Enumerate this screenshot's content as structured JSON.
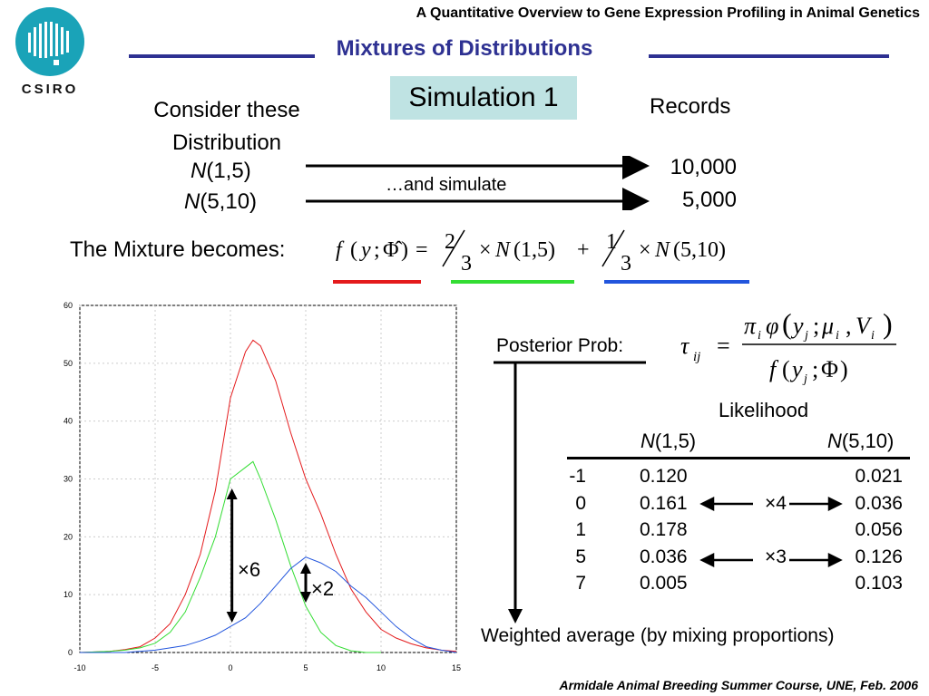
{
  "header": {
    "title": "A Quantitative Overview to Gene Expression Profiling in Animal Genetics"
  },
  "footer": {
    "text": "Armidale Animal Breeding Summer Course, UNE, Feb. 2006"
  },
  "logo": {
    "text": "CSIRO"
  },
  "slide": {
    "title": "Mixtures of Distributions",
    "simulation": "Simulation 1",
    "consider": [
      "Consider these",
      "Distribution"
    ],
    "dist1_n": "N",
    "dist1_params": "(1,5)",
    "dist2_n": "N",
    "dist2_params": "(5,10)",
    "records_label": "Records",
    "records1": "10,000",
    "records2": "5,000",
    "simulate_label": "…and simulate",
    "mixture_label": "The Mixture becomes:",
    "posterior_label": "Posterior Prob:",
    "weighted_label": "Weighted average (by mixing proportions)",
    "factor6": "×6",
    "factor2": "×2"
  },
  "formula": {
    "f": "f",
    "y": "y",
    "phi_hat": "Φ̂",
    "eq": "=",
    "w1_num": "2",
    "w1_den": "3",
    "times": "×",
    "n1": "N",
    "n1_params": "(1,5)",
    "plus": "+",
    "w2_num": "1",
    "w2_den": "3",
    "n2": "N",
    "n2_params": "(5,10)"
  },
  "posterior_formula": {
    "tau": "τ",
    "tau_sub": "ij",
    "eq": "=",
    "num_pi": "π",
    "num_pi_sub": "i",
    "num_phi": "φ",
    "num_y": "y",
    "num_y_sub": "j",
    "num_mu": "μ",
    "num_mu_sub": "i",
    "num_v": "V",
    "num_v_sub": "i",
    "den_f": "f",
    "den_y": "y",
    "den_y_sub": "j",
    "den_phi": "Φ"
  },
  "colors": {
    "red": "#e41a1c",
    "green": "#33dd33",
    "blue": "#2255dd",
    "title": "#2e3192",
    "sim_box": "#bfe3e3"
  },
  "likelihood_table": {
    "title": "Likelihood",
    "col1_n": "N",
    "col1_params": "(1,5)",
    "col2_n": "N",
    "col2_params": "(5,10)",
    "rows": [
      {
        "y": "-1",
        "l1": "0.120",
        "l2": "0.021",
        "ratio": ""
      },
      {
        "y": "0",
        "l1": "0.161",
        "l2": "0.036",
        "ratio": "×4"
      },
      {
        "y": "1",
        "l1": "0.178",
        "l2": "0.056",
        "ratio": ""
      },
      {
        "y": "5",
        "l1": "0.036",
        "l2": "0.126",
        "ratio": "×3"
      },
      {
        "y": "7",
        "l1": "0.005",
        "l2": "0.103",
        "ratio": ""
      }
    ]
  },
  "chart_data": {
    "type": "line",
    "xlim": [
      -10,
      15
    ],
    "ylim": [
      0,
      60
    ],
    "grid": true,
    "x_ticks": [
      "-10",
      "-5",
      "0",
      "5",
      "10",
      "15"
    ],
    "y_ticks": [
      "0",
      "10",
      "20",
      "30",
      "40",
      "50",
      "60"
    ],
    "series": [
      {
        "color": "#e41a1c",
        "x": [
          -10,
          -8,
          -7,
          -6,
          -5,
          -4,
          -3,
          -2,
          -1,
          0,
          1,
          1.5,
          2,
          3,
          4,
          5,
          6,
          7,
          8,
          9,
          10,
          11,
          12,
          13,
          14,
          15
        ],
        "y": [
          0,
          0.2,
          0.5,
          1,
          2.5,
          5,
          10,
          17,
          28,
          44,
          52,
          54,
          53,
          47,
          38,
          30,
          24,
          17,
          11,
          7,
          4,
          2.5,
          1.5,
          0.8,
          0.4,
          0.2
        ]
      },
      {
        "color": "#33dd33",
        "x": [
          -10,
          -8,
          -7,
          -6,
          -5,
          -4,
          -3,
          -2,
          -1,
          0,
          1,
          1.5,
          2,
          3,
          4,
          5,
          6,
          7,
          8,
          9,
          10
        ],
        "y": [
          0,
          0.2,
          0.4,
          0.8,
          1.6,
          3.5,
          7,
          13,
          20,
          30,
          32,
          33,
          30,
          23,
          15,
          8,
          3.5,
          1.2,
          0.3,
          0,
          0
        ]
      },
      {
        "color": "#2255dd",
        "x": [
          -10,
          -7,
          -5,
          -4,
          -3,
          -2,
          -1,
          0,
          1,
          2,
          3,
          4,
          5,
          6,
          7,
          8,
          9,
          10,
          11,
          12,
          13,
          14,
          15
        ],
        "y": [
          0,
          0,
          0.4,
          0.8,
          1.2,
          2,
          3,
          4.5,
          6,
          8.5,
          11.5,
          14.5,
          16.5,
          15.5,
          14,
          11.5,
          9.5,
          7,
          4.5,
          2.5,
          1,
          0.4,
          0
        ]
      }
    ]
  }
}
